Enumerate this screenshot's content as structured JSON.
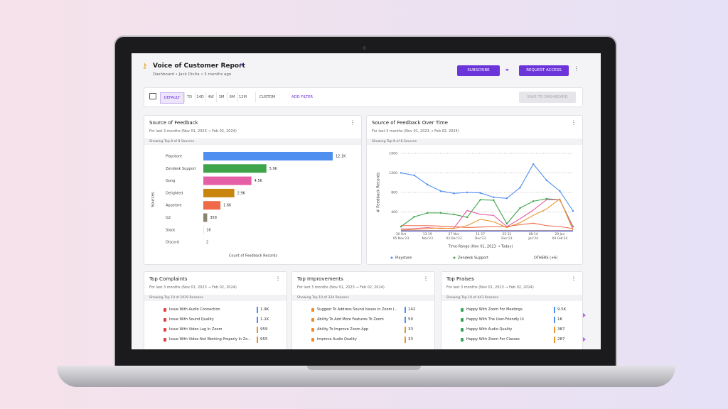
{
  "header": {
    "title": "Voice of Customer Report",
    "subtitle": "Dashboard • Jack Divita • 5 months ago",
    "buttons": [
      "SUBSCRIBE",
      "REQUEST ACCESS"
    ]
  },
  "toolbar": {
    "ranges": [
      "DEFAULT",
      "7D",
      "14D",
      "4W",
      "3M",
      "6M",
      "12M"
    ],
    "custom": "CUSTOM",
    "add_filter": "ADD FILTER",
    "save": "SAVE TO DASHBOARD"
  },
  "chart_data": [
    {
      "type": "bar",
      "orientation": "horizontal",
      "title": "Source of Feedback",
      "subtitle": "For last 3 months (Nov 01, 2023 → Feb 02, 2024)",
      "note": "Showing Top 8 of 8 Sources",
      "categories": [
        "Playstore",
        "Zendesk Support",
        "Gong",
        "Delighted",
        "Appstore",
        "G2",
        "Slack",
        "Discord"
      ],
      "values": [
        12100,
        5900,
        4500,
        2900,
        1600,
        358,
        16,
        2
      ],
      "value_labels": [
        "12.1K",
        "5.9K",
        "4.5K",
        "2.9K",
        "1.6K",
        "358",
        "16",
        "2"
      ],
      "colors": [
        "#4e8ff0",
        "#3da44a",
        "#e45fa6",
        "#c8860f",
        "#ee6a48",
        "#8a8470",
        "#c77dd8",
        "#6b7fd6"
      ],
      "xlim": [
        0,
        12100
      ],
      "xlabel": "Count of Feedback Records",
      "ylabel": "Sources"
    },
    {
      "type": "line",
      "title": "Source of Feedback Over Time",
      "subtitle": "For last 3 months (Nov 01, 2023 → Feb 02, 2024)",
      "note": "Showing Top 8 of 8 Sources",
      "categories": [
        "30 Oct\n05 Nov'23",
        null,
        "13-19\nNov'23",
        null,
        "27 Nov\n03 Dec'23",
        null,
        "11-17\nDec'23",
        null,
        "25-31\nDec'23",
        null,
        "08-14\nJan'24",
        null,
        "29 Jan\n04 Feb'24",
        null
      ],
      "series": [
        {
          "name": "Playstore",
          "color": "#4e8ff0",
          "values": [
            1200,
            1150,
            960,
            830,
            780,
            800,
            790,
            700,
            680,
            900,
            1380,
            1050,
            830,
            420
          ]
        },
        {
          "name": "Zendesk Support",
          "color": "#3da44a",
          "values": [
            100,
            300,
            380,
            380,
            350,
            290,
            650,
            640,
            160,
            480,
            620,
            670,
            650,
            100
          ]
        },
        {
          "color": "#e45fa6",
          "values": [
            50,
            60,
            80,
            60,
            70,
            430,
            350,
            330,
            100,
            260,
            440,
            650,
            650,
            80
          ]
        },
        {
          "color": "#e8952a",
          "values": [
            30,
            40,
            60,
            70,
            60,
            120,
            250,
            200,
            80,
            180,
            330,
            460,
            670,
            30
          ]
        },
        {
          "color": "#ee6a48",
          "values": [
            120,
            120,
            120,
            110,
            100,
            80,
            90,
            100,
            100,
            140,
            170,
            120,
            100,
            60
          ]
        },
        {
          "color": "#8a8470",
          "values": [
            20,
            20,
            20,
            20,
            20,
            20,
            20,
            20,
            20,
            20,
            20,
            20,
            20,
            20
          ]
        },
        {
          "color": "#c77dd8",
          "values": [
            10,
            10,
            10,
            10,
            10,
            10,
            10,
            10,
            10,
            10,
            10,
            10,
            10,
            10
          ]
        },
        {
          "color": "#6b7fd6",
          "values": [
            5,
            5,
            5,
            5,
            5,
            5,
            5,
            5,
            5,
            5,
            5,
            5,
            5,
            5
          ]
        }
      ],
      "ylim": [
        0,
        1600
      ],
      "yticks": [
        400,
        800,
        1200,
        1600
      ],
      "grid": true,
      "ylabel": "# Feedback Records",
      "xlabel": "Time-Range (Nov 01, 2023 → Today)",
      "legend_more": "OTHERS (+6)"
    }
  ],
  "lists": [
    {
      "title": "Top Complaints",
      "subtitle": "For last 3 months (Nov 01, 2023 → Feb 02, 2024)",
      "note": "Showing Top 10 of 1029 Reasons",
      "icon_color": "#e04040",
      "items": [
        {
          "label": "Issue With Audio Connection",
          "value": "1.9K",
          "color": "#4e8ff0"
        },
        {
          "label": "Issue With Sound Quality",
          "value": "1.1K",
          "color": "#4e8ff0"
        },
        {
          "label": "Issue With Video Lag In Zoom",
          "value": "959",
          "color": "#e8952a"
        },
        {
          "label": "Issue With Video Not Working Properly In Zo...",
          "value": "955",
          "color": "#e8952a"
        }
      ]
    },
    {
      "title": "Top Improvements",
      "subtitle": "For last 3 months (Nov 01, 2023 → Feb 02, 2024)",
      "note": "Showing Top 10 of 334 Reasons",
      "icon_color": "#f08a24",
      "items": [
        {
          "label": "Suggest To Address Sound Issues In Zoom I...",
          "value": "142",
          "color": "#4e8ff0"
        },
        {
          "label": "Ability To Add More Features To Zoom",
          "value": "50",
          "color": "#4e8ff0"
        },
        {
          "label": "Ability To Improve Zoom App",
          "value": "33",
          "color": "#e8952a"
        },
        {
          "label": "Improve Audio Quality",
          "value": "33",
          "color": "#e8952a"
        }
      ]
    },
    {
      "title": "Top Praises",
      "subtitle": "For last 3 months (Nov 01, 2023 → Feb 02, 2024)",
      "note": "Showing Top 10 of 443 Reasons",
      "icon_color": "#3aa35a",
      "items": [
        {
          "label": "Happy With Zoom For Meetings",
          "value": "9.5K",
          "color": "#4e8ff0"
        },
        {
          "label": "Happy With The User-Friendly Ui",
          "value": "1K",
          "color": "#4e8ff0"
        },
        {
          "label": "Happy With Audio Quality",
          "value": "387",
          "color": "#e8952a"
        },
        {
          "label": "Happy With Zoom For Classes",
          "value": "287",
          "color": "#e8952a"
        }
      ]
    }
  ]
}
